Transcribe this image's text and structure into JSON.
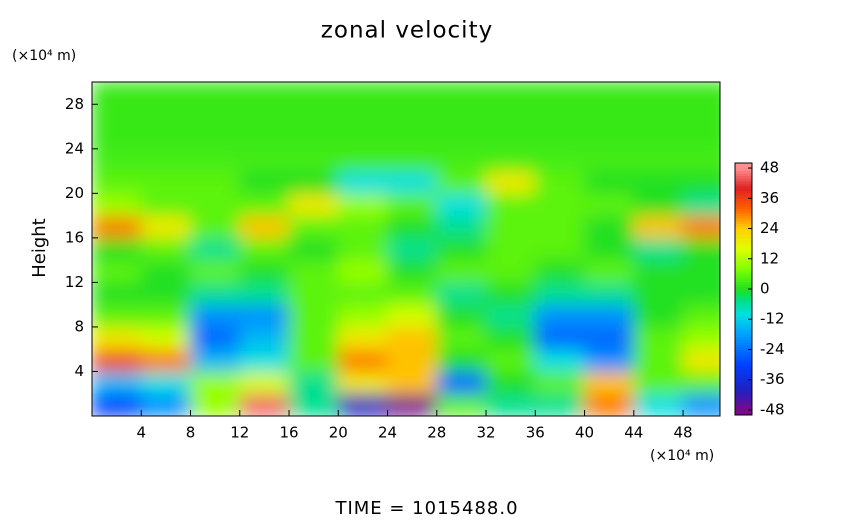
{
  "chart_data": {
    "type": "contour",
    "title": "zonal velocity",
    "y_unit_label": "(×10⁴ m)",
    "x_unit_label": "(×10⁴ m)",
    "ylabel": "Height",
    "footer": "TIME = 1015488.0",
    "xlim": [
      0,
      51
    ],
    "ylim": [
      0,
      30
    ],
    "xticks": [
      4,
      8,
      12,
      16,
      20,
      24,
      28,
      32,
      36,
      40,
      44,
      48
    ],
    "yticks": [
      4,
      8,
      12,
      16,
      20,
      24,
      28
    ],
    "x": [
      2,
      6,
      10,
      14,
      18,
      22,
      26,
      30,
      34,
      38,
      42,
      46,
      50
    ],
    "y": [
      1,
      3,
      5,
      7,
      9,
      11,
      13,
      15,
      17,
      19,
      21,
      23,
      25,
      27,
      29
    ],
    "z": [
      [
        -30,
        -20,
        10,
        45,
        -5,
        -40,
        -48,
        5,
        -5,
        -5,
        30,
        -10,
        -20
      ],
      [
        -15,
        -10,
        10,
        15,
        -5,
        20,
        25,
        -25,
        0,
        5,
        25,
        5,
        5
      ],
      [
        35,
        30,
        -15,
        -10,
        5,
        30,
        25,
        0,
        5,
        -10,
        -20,
        5,
        20
      ],
      [
        20,
        15,
        -25,
        -15,
        5,
        20,
        25,
        5,
        0,
        -25,
        -25,
        5,
        10
      ],
      [
        5,
        5,
        -20,
        -20,
        5,
        10,
        15,
        0,
        -5,
        -20,
        -20,
        0,
        5
      ],
      [
        0,
        0,
        -5,
        -5,
        5,
        5,
        5,
        -5,
        0,
        -5,
        -5,
        0,
        0
      ],
      [
        5,
        0,
        5,
        0,
        5,
        10,
        0,
        5,
        5,
        0,
        5,
        0,
        0
      ],
      [
        0,
        5,
        -5,
        5,
        0,
        5,
        -5,
        0,
        5,
        5,
        0,
        -5,
        0
      ],
      [
        30,
        20,
        5,
        25,
        5,
        5,
        0,
        -5,
        5,
        5,
        0,
        25,
        30
      ],
      [
        10,
        5,
        5,
        5,
        20,
        10,
        5,
        -10,
        5,
        5,
        5,
        0,
        -5
      ],
      [
        5,
        5,
        5,
        0,
        0,
        -10,
        -10,
        5,
        20,
        5,
        0,
        0,
        0
      ],
      [
        3,
        3,
        3,
        3,
        3,
        3,
        3,
        3,
        3,
        3,
        3,
        3,
        3
      ],
      [
        2,
        2,
        2,
        2,
        2,
        2,
        2,
        2,
        2,
        2,
        2,
        2,
        2
      ],
      [
        2,
        2,
        2,
        2,
        2,
        2,
        2,
        2,
        2,
        2,
        2,
        2,
        2
      ],
      [
        2,
        2,
        2,
        2,
        2,
        2,
        2,
        2,
        2,
        2,
        2,
        2,
        2
      ]
    ],
    "colorbar": {
      "lim": [
        -50,
        50
      ],
      "ticks": [
        48,
        36,
        24,
        12,
        0,
        -12,
        -24,
        -36,
        -48
      ],
      "colormap": [
        {
          "value": -48,
          "color": "#7a0a8c"
        },
        {
          "value": -40,
          "color": "#2020c0"
        },
        {
          "value": -30,
          "color": "#0040ff"
        },
        {
          "value": -18,
          "color": "#00a0ff"
        },
        {
          "value": -10,
          "color": "#00e0e0"
        },
        {
          "value": -4,
          "color": "#00e080"
        },
        {
          "value": 0,
          "color": "#20e020"
        },
        {
          "value": 8,
          "color": "#80ff00"
        },
        {
          "value": 16,
          "color": "#e0ff00"
        },
        {
          "value": 24,
          "color": "#ffd000"
        },
        {
          "value": 32,
          "color": "#ff6000"
        },
        {
          "value": 40,
          "color": "#e02020"
        },
        {
          "value": 48,
          "color": "#ff9090"
        }
      ]
    }
  }
}
